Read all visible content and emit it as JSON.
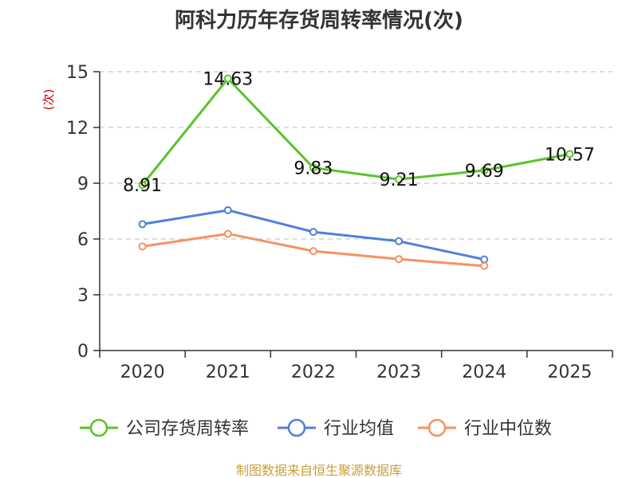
{
  "chart_data": {
    "type": "line",
    "title": "阿科力历年存货周转率情况(次)",
    "ylabel": "(次)",
    "categories": [
      "2020",
      "2021",
      "2022",
      "2023",
      "2024",
      "2025"
    ],
    "ylim": [
      0,
      15
    ],
    "yticks": [
      "0",
      "3",
      "6",
      "9",
      "12",
      "15"
    ],
    "grid": true,
    "legend_position": "bottom",
    "series": [
      {
        "name": "公司存货周转率",
        "color": "#5cc22c",
        "values": [
          8.91,
          14.63,
          9.83,
          9.21,
          9.69,
          10.57
        ],
        "labels": [
          "8.91",
          "14.63",
          "9.83",
          "9.21",
          "9.69",
          "10.57"
        ]
      },
      {
        "name": "行业均值",
        "color": "#4f80dc",
        "values": [
          6.8,
          7.55,
          6.38,
          5.88,
          4.9,
          null
        ]
      },
      {
        "name": "行业中位数",
        "color": "#f59262",
        "values": [
          5.6,
          6.28,
          5.35,
          4.92,
          4.55,
          null
        ]
      }
    ],
    "source": "制图数据来自恒生聚源数据库"
  }
}
